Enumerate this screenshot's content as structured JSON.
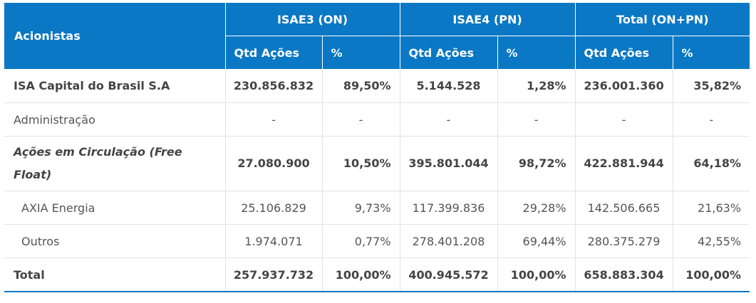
{
  "table": {
    "header": {
      "acionistas": "Acionistas",
      "groups": [
        "ISAE3 (ON)",
        "ISAE4 (PN)",
        "Total (ON+PN)"
      ],
      "qtd": "Qtd Ações",
      "pct": "%"
    },
    "rows": [
      {
        "name": "ISA Capital do Brasil S.A",
        "cells": [
          "230.856.832",
          "89,50%",
          "5.144.528",
          "1,28%",
          "236.001.360",
          "35,82%"
        ]
      },
      {
        "name": "Administração",
        "cells": [
          "-",
          "-",
          "-",
          "-",
          "-",
          "-"
        ]
      },
      {
        "name": "Ações em Circulação (Free Float)",
        "cells": [
          "27.080.900",
          "10,50%",
          "395.801.044",
          "98,72%",
          "422.881.944",
          "64,18%"
        ]
      },
      {
        "name": "AXIA Energia",
        "cells": [
          "25.106.829",
          "9,73%",
          "117.399.836",
          "29,28%",
          "142.506.665",
          "21,63%"
        ]
      },
      {
        "name": "Outros",
        "cells": [
          "1.974.071",
          "0,77%",
          "278.401.208",
          "69,44%",
          "280.375.279",
          "42,55%"
        ]
      },
      {
        "name": "Total",
        "cells": [
          "257.937.732",
          "100,00%",
          "400.945.572",
          "100,00%",
          "658.883.304",
          "100,00%"
        ]
      }
    ]
  },
  "colors": {
    "header_bg": "#0a78c4",
    "header_text": "#ffffff",
    "body_text": "#444444",
    "grid": "#e3e3e3"
  }
}
